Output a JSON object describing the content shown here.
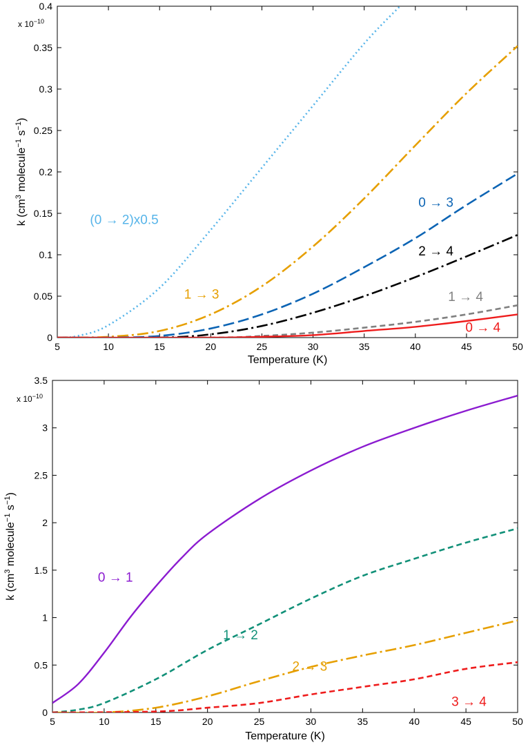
{
  "chart_data": [
    {
      "type": "line",
      "xlabel": "Temperature (K)",
      "ylabel": "k (cm³ molecule⁻¹ s⁻¹)",
      "ylabel_parts": {
        "a": "k (cm",
        "b": "3",
        "c": " molecule",
        "d": "−1",
        "e": " s",
        "f": "−1",
        "g": ")"
      },
      "multiplier": {
        "base": "x 10",
        "exp": "−10"
      },
      "xlim": [
        5,
        50
      ],
      "ylim": [
        0,
        0.4
      ],
      "xticks": [
        5,
        10,
        15,
        20,
        25,
        30,
        35,
        40,
        45,
        50
      ],
      "xtick_labels": [
        "5",
        "10",
        "15",
        "20",
        "25",
        "30",
        "35",
        "40",
        "45",
        "50"
      ],
      "yticks": [
        0,
        0.05,
        0.1,
        0.15,
        0.2,
        0.25,
        0.3,
        0.35,
        0.4
      ],
      "ytick_labels": [
        "0",
        "0.05",
        "0.1",
        "0.15",
        "0.2",
        "0.25",
        "0.3",
        "0.35",
        "0.4"
      ],
      "series": [
        {
          "name": "(0 → 2)x0.5",
          "color": "#56b4e9",
          "dash": "dotted",
          "x": [
            5,
            7,
            10,
            15,
            20,
            25,
            30,
            35,
            38.5
          ],
          "y": [
            0,
            0.002,
            0.015,
            0.06,
            0.13,
            0.205,
            0.28,
            0.355,
            0.4
          ]
        },
        {
          "name": "1 → 3",
          "color": "#e69f00",
          "dash": "dashdot",
          "x": [
            5,
            10,
            15,
            20,
            25,
            30,
            35,
            40,
            45,
            50
          ],
          "y": [
            0,
            0.001,
            0.008,
            0.028,
            0.062,
            0.11,
            0.168,
            0.232,
            0.295,
            0.352
          ]
        },
        {
          "name": "0 → 3",
          "color": "#0c64b4",
          "dash": "longdash",
          "x": [
            5,
            10,
            15,
            20,
            25,
            30,
            35,
            40,
            45,
            50
          ],
          "y": [
            0,
            0,
            0.002,
            0.011,
            0.028,
            0.053,
            0.085,
            0.12,
            0.16,
            0.198
          ]
        },
        {
          "name": "2 → 4",
          "color": "#000000",
          "dash": "dashdot",
          "x": [
            5,
            15,
            20,
            25,
            30,
            35,
            40,
            45,
            50
          ],
          "y": [
            0,
            0,
            0.004,
            0.014,
            0.03,
            0.05,
            0.073,
            0.098,
            0.124
          ]
        },
        {
          "name": "1 → 4",
          "color": "#808080",
          "dash": "dashed",
          "x": [
            5,
            20,
            25,
            30,
            35,
            40,
            45,
            50
          ],
          "y": [
            0,
            0,
            0.002,
            0.006,
            0.012,
            0.019,
            0.028,
            0.039
          ]
        },
        {
          "name": "0 → 4",
          "color": "#ee1c1c",
          "dash": "solid",
          "x": [
            5,
            20,
            25,
            30,
            35,
            40,
            45,
            50
          ],
          "y": [
            0,
            0,
            0.001,
            0.003,
            0.008,
            0.013,
            0.02,
            0.028
          ]
        }
      ],
      "annotations": [
        {
          "text": "(0 → 2)x0.5",
          "color": "#56b4e9",
          "x": 8.2,
          "y": 0.137
        },
        {
          "text": "1 → 3",
          "color": "#e69f00",
          "x": 17.4,
          "y": 0.047
        },
        {
          "text": "0 → 3",
          "color": "#0c64b4",
          "x": 40.3,
          "y": 0.158
        },
        {
          "text": "2 → 4",
          "color": "#000000",
          "x": 40.3,
          "y": 0.099
        },
        {
          "text": "1 → 4",
          "color": "#808080",
          "x": 43.2,
          "y": 0.044
        },
        {
          "text": "0 → 4",
          "color": "#ee1c1c",
          "x": 44.9,
          "y": 0.007
        }
      ]
    },
    {
      "type": "line",
      "xlabel": "Temperature (K)",
      "ylabel": "k (cm³ molecule⁻¹ s⁻¹)",
      "ylabel_parts": {
        "a": "k (cm",
        "b": "3",
        "c": " molecule",
        "d": "−1",
        "e": " s",
        "f": "−1",
        "g": ")"
      },
      "multiplier": {
        "base": "x 10",
        "exp": "−10"
      },
      "xlim": [
        5,
        50
      ],
      "ylim": [
        0,
        3.5
      ],
      "xticks": [
        5,
        10,
        15,
        20,
        25,
        30,
        35,
        40,
        45,
        50
      ],
      "xtick_labels": [
        "5",
        "10",
        "15",
        "20",
        "25",
        "30",
        "35",
        "40",
        "45",
        "50"
      ],
      "yticks": [
        0,
        0.5,
        1,
        1.5,
        2,
        2.5,
        3,
        3.5
      ],
      "ytick_labels": [
        "0",
        "0.5",
        "1",
        "1.5",
        "2",
        "2.5",
        "3",
        "3.5"
      ],
      "series": [
        {
          "name": "0 → 1",
          "color": "#8b1bd0",
          "dash": "solid",
          "x": [
            5,
            7.5,
            10,
            12.5,
            15,
            17.5,
            20,
            25,
            30,
            35,
            40,
            45,
            50
          ],
          "y": [
            0.1,
            0.3,
            0.63,
            1.0,
            1.33,
            1.63,
            1.88,
            2.25,
            2.55,
            2.8,
            3.0,
            3.18,
            3.34
          ]
        },
        {
          "name": "1 → 2",
          "color": "#119078",
          "dash": "dashed",
          "x": [
            5,
            7.5,
            10,
            15,
            20,
            25,
            30,
            35,
            40,
            45,
            50
          ],
          "y": [
            0,
            0.03,
            0.1,
            0.35,
            0.66,
            0.93,
            1.2,
            1.44,
            1.62,
            1.79,
            1.94
          ]
        },
        {
          "name": "2 → 3",
          "color": "#e69f00",
          "dash": "dashdot",
          "x": [
            5,
            10,
            15,
            20,
            25,
            30,
            35,
            40,
            45,
            50
          ],
          "y": [
            0,
            0,
            0.05,
            0.17,
            0.33,
            0.48,
            0.6,
            0.71,
            0.84,
            0.97
          ]
        },
        {
          "name": "3 → 4",
          "color": "#ee1c1c",
          "dash": "dashed",
          "x": [
            5,
            15,
            20,
            25,
            30,
            35,
            40,
            45,
            50
          ],
          "y": [
            0,
            0.01,
            0.05,
            0.1,
            0.19,
            0.27,
            0.35,
            0.46,
            0.53
          ]
        }
      ],
      "annotations": [
        {
          "text": "0 → 1",
          "color": "#8b1bd0",
          "x": 9.4,
          "y": 1.38
        },
        {
          "text": "1 → 2",
          "color": "#119078",
          "x": 21.5,
          "y": 0.77
        },
        {
          "text": "2 → 3",
          "color": "#e69f00",
          "x": 28.2,
          "y": 0.44
        },
        {
          "text": "3 → 4",
          "color": "#ee1c1c",
          "x": 43.6,
          "y": 0.07
        }
      ]
    }
  ]
}
